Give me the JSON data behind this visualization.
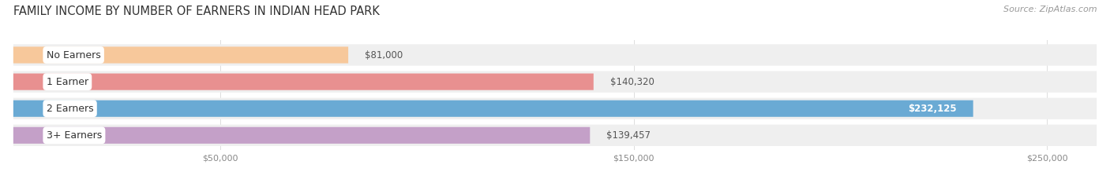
{
  "title": "FAMILY INCOME BY NUMBER OF EARNERS IN INDIAN HEAD PARK",
  "source": "Source: ZipAtlas.com",
  "categories": [
    "No Earners",
    "1 Earner",
    "2 Earners",
    "3+ Earners"
  ],
  "values": [
    81000,
    140320,
    232125,
    139457
  ],
  "labels": [
    "$81,000",
    "$140,320",
    "$232,125",
    "$139,457"
  ],
  "bar_colors": [
    "#f7c89b",
    "#e89090",
    "#6aaad4",
    "#c4a0c8"
  ],
  "track_color": "#efefef",
  "label_inside": [
    false,
    false,
    true,
    false
  ],
  "xmin": 0,
  "xmax": 262000,
  "xticks": [
    50000,
    150000,
    250000
  ],
  "xticklabels": [
    "$50,000",
    "$150,000",
    "$250,000"
  ],
  "title_fontsize": 10.5,
  "source_fontsize": 8,
  "bar_label_fontsize": 8.5,
  "cat_label_fontsize": 9,
  "figsize": [
    14.06,
    2.33
  ],
  "dpi": 100,
  "background_color": "#ffffff"
}
